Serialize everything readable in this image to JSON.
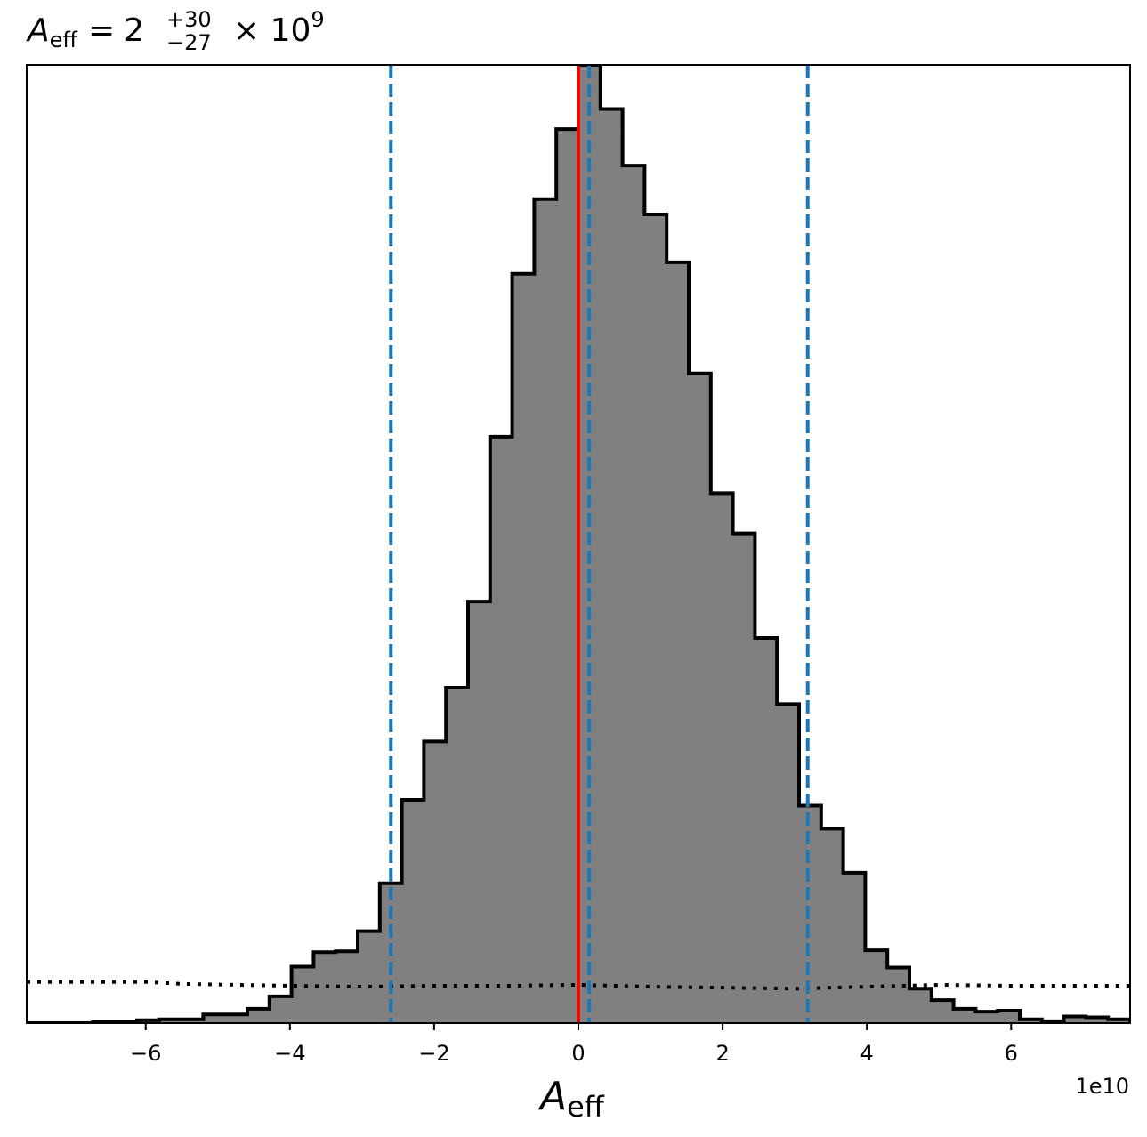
{
  "chart_data": {
    "type": "histogram",
    "title": {
      "symbol": "A",
      "symbol_sub": "eff",
      "equals": "=",
      "value": "2",
      "upper_err": "+30",
      "lower_err": "−27",
      "times": "× 10",
      "exponent": "9"
    },
    "xlabel": {
      "symbol": "A",
      "sub": "eff"
    },
    "offset_text": "1e10",
    "x_scale_factor": 10000000000.0,
    "xlim": [
      -7.65,
      7.65
    ],
    "ylim": [
      0,
      1
    ],
    "xticks": [
      -6,
      -4,
      -2,
      0,
      2,
      4,
      6
    ],
    "xtick_labels": [
      "−6",
      "−4",
      "−2",
      "0",
      "2",
      "4",
      "6"
    ],
    "grid": false,
    "bin_start": -7.65,
    "bin_width": 0.306,
    "values": [
      0.0,
      0.0,
      0.0,
      0.001,
      0.001,
      0.003,
      0.004,
      0.004,
      0.009,
      0.009,
      0.015,
      0.028,
      0.059,
      0.074,
      0.075,
      0.096,
      0.146,
      0.233,
      0.294,
      0.35,
      0.44,
      0.612,
      0.782,
      0.86,
      0.933,
      1.0,
      0.954,
      0.895,
      0.844,
      0.794,
      0.678,
      0.553,
      0.511,
      0.402,
      0.333,
      0.227,
      0.203,
      0.157,
      0.076,
      0.058,
      0.036,
      0.024,
      0.015,
      0.012,
      0.013,
      0.004,
      0.002,
      0.007,
      0.006,
      0.004
    ],
    "hist_color": "#808080",
    "hist_edge_color": "#000000",
    "red_line": {
      "x": 0.0,
      "color": "#ff0000"
    },
    "blue_dashed_lines": {
      "x": [
        -2.6,
        0.15,
        3.18
      ],
      "color": "#1f77b4"
    },
    "prior_dotted_line": {
      "color": "#000000",
      "x": [
        -7.65,
        -6.0,
        -5.5,
        -4.0,
        -3.0,
        -2.0,
        -1.0,
        0.0,
        1.0,
        2.0,
        3.0,
        4.0,
        5.0,
        6.0,
        7.65
      ],
      "y": [
        0.043,
        0.043,
        0.041,
        0.039,
        0.038,
        0.039,
        0.039,
        0.04,
        0.038,
        0.037,
        0.036,
        0.038,
        0.04,
        0.039,
        0.039
      ]
    }
  }
}
